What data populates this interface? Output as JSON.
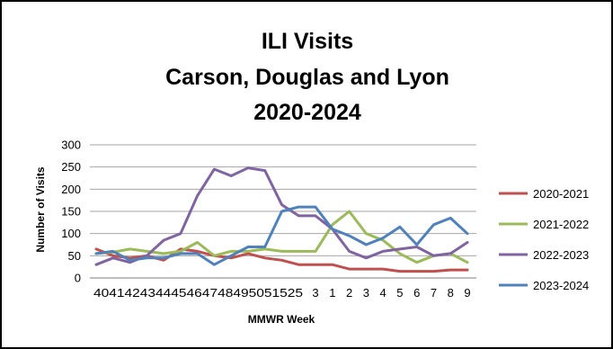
{
  "chart_data": {
    "type": "line",
    "title": [
      "ILI Visits",
      "Carson, Douglas and Lyon",
      "2020-2024"
    ],
    "xlabel": "MMWR Week",
    "ylabel": "Number of Visits",
    "ylim": [
      0,
      300
    ],
    "yticks": [
      "0",
      "50",
      "100",
      "150",
      "200",
      "250",
      "300"
    ],
    "x_tick_label_run": "404142434445464748495051525",
    "x_tick_labels_spaced": [
      "3",
      "1",
      "2",
      "3",
      "4",
      "5",
      "6",
      "7",
      "8",
      "9"
    ],
    "categories": [
      "40",
      "41",
      "42",
      "43",
      "44",
      "45",
      "46",
      "47",
      "48",
      "49",
      "50",
      "51",
      "52",
      "53",
      "1",
      "2",
      "3",
      "4",
      "5",
      "6",
      "7",
      "8",
      "9"
    ],
    "grid": "horizontal",
    "legend_position": "right",
    "series": [
      {
        "name": "2020-2021",
        "color": "#c0504d",
        "values": [
          65,
          50,
          45,
          50,
          40,
          65,
          60,
          50,
          45,
          55,
          45,
          40,
          30,
          30,
          30,
          20,
          20,
          20,
          15,
          15,
          15,
          18,
          18
        ]
      },
      {
        "name": "2021-2022",
        "color": "#9bbb59",
        "values": [
          55,
          58,
          65,
          60,
          55,
          60,
          80,
          50,
          60,
          60,
          65,
          60,
          60,
          60,
          120,
          150,
          100,
          85,
          55,
          35,
          50,
          55,
          35
        ]
      },
      {
        "name": "2022-2023",
        "color": "#8064a2",
        "values": [
          30,
          45,
          35,
          50,
          85,
          100,
          185,
          245,
          230,
          248,
          242,
          165,
          140,
          140,
          110,
          60,
          45,
          60,
          65,
          70,
          50,
          55,
          80
        ]
      },
      {
        "name": "2023-2024",
        "color": "#4f81bd",
        "values": [
          55,
          60,
          40,
          45,
          45,
          55,
          55,
          30,
          50,
          70,
          70,
          150,
          160,
          160,
          110,
          95,
          75,
          90,
          115,
          75,
          120,
          135,
          100
        ]
      }
    ]
  }
}
